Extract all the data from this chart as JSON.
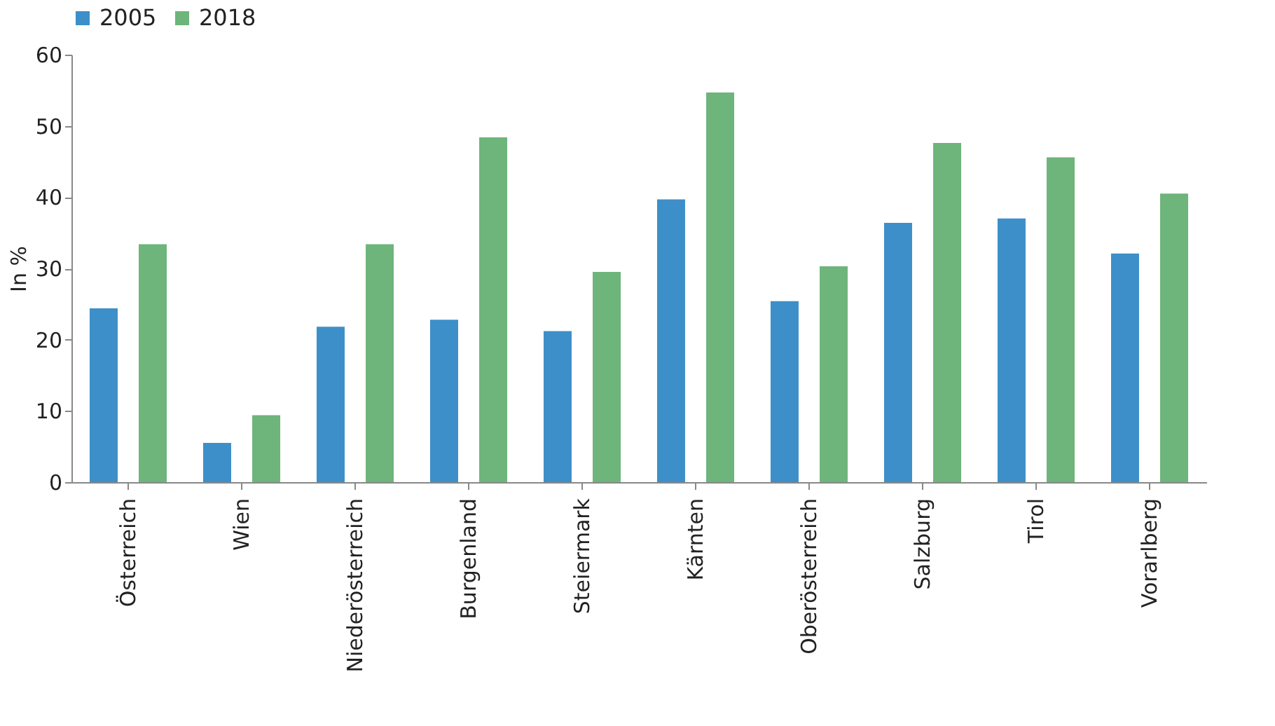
{
  "chart_data": {
    "type": "bar",
    "ylabel": "In %",
    "categories": [
      "Österreich",
      "Wien",
      "Niederösterreich",
      "Burgenland",
      "Steiermark",
      "Kärnten",
      "Oberösterreich",
      "Salzburg",
      "Tirol",
      "Vorarlberg"
    ],
    "series": [
      {
        "name": "2005",
        "color": "#3d8fc9",
        "values": [
          24.4,
          5.5,
          21.8,
          22.8,
          21.2,
          39.7,
          25.4,
          36.4,
          37.0,
          32.1
        ]
      },
      {
        "name": "2018",
        "color": "#6db57a",
        "values": [
          33.4,
          9.4,
          33.4,
          48.4,
          29.5,
          54.7,
          30.3,
          47.6,
          45.6,
          40.5
        ]
      }
    ],
    "ylim": [
      0,
      60
    ],
    "yticks": [
      0,
      10,
      20,
      30,
      40,
      50,
      60
    ],
    "grid": false,
    "legend": "top"
  }
}
